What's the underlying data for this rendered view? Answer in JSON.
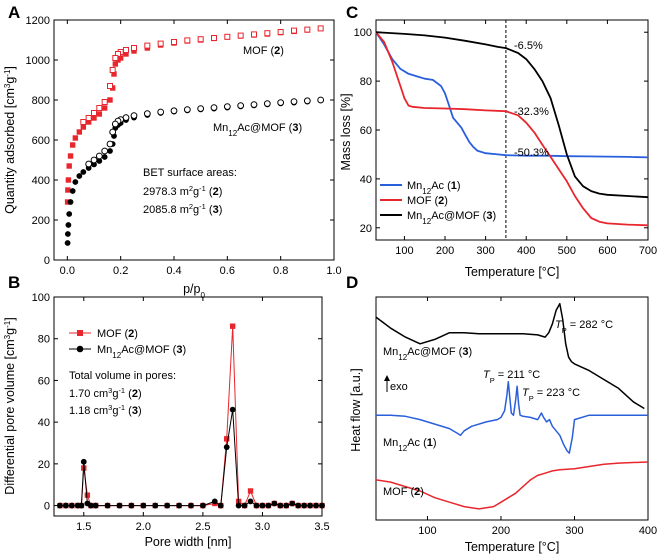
{
  "figure": {
    "panels": [
      "A",
      "B",
      "C",
      "D"
    ]
  },
  "chart_data": [
    {
      "panel": "A",
      "type": "scatter",
      "xlabel": "p/p0",
      "ylabel": "Quantity adsorbed [cm3g-1]",
      "xlim": [
        -0.05,
        1.0
      ],
      "ylim": [
        0,
        1200
      ],
      "xticks": [
        0.0,
        0.2,
        0.4,
        0.6,
        0.8,
        1.0
      ],
      "yticks": [
        0,
        200,
        400,
        600,
        800,
        1000,
        1200
      ],
      "series": [
        {
          "name": "MOF (2) adsorption",
          "color": "#e8262d",
          "marker": "filled-square",
          "x": [
            0.001,
            0.002,
            0.004,
            0.007,
            0.012,
            0.02,
            0.03,
            0.045,
            0.06,
            0.08,
            0.1,
            0.12,
            0.14,
            0.16,
            0.17,
            0.175,
            0.18,
            0.19,
            0.2,
            0.22,
            0.25,
            0.3,
            0.35,
            0.4,
            0.45,
            0.5,
            0.55,
            0.6,
            0.65,
            0.7,
            0.75,
            0.8,
            0.85,
            0.9,
            0.95
          ],
          "y": [
            290,
            350,
            400,
            470,
            520,
            575,
            610,
            640,
            665,
            690,
            710,
            730,
            760,
            800,
            860,
            930,
            980,
            1000,
            1010,
            1030,
            1045,
            1060,
            1075,
            1085,
            1095,
            1100,
            1108,
            1115,
            1120,
            1125,
            1130,
            1137,
            1143,
            1150,
            1158
          ]
        },
        {
          "name": "MOF (2) desorption",
          "color": "#e8262d",
          "marker": "open-square",
          "x": [
            0.95,
            0.9,
            0.85,
            0.8,
            0.75,
            0.7,
            0.65,
            0.6,
            0.55,
            0.5,
            0.45,
            0.4,
            0.35,
            0.3,
            0.25,
            0.22,
            0.2,
            0.19,
            0.18,
            0.17,
            0.16,
            0.14,
            0.12,
            0.1,
            0.08,
            0.06
          ],
          "y": [
            1158,
            1152,
            1147,
            1140,
            1134,
            1128,
            1122,
            1116,
            1110,
            1104,
            1098,
            1090,
            1082,
            1072,
            1060,
            1050,
            1040,
            1030,
            1010,
            950,
            870,
            790,
            760,
            735,
            710,
            690
          ]
        },
        {
          "name": "Mn12Ac@MOF (3) adsorption",
          "color": "#000000",
          "marker": "filled-circle",
          "x": [
            0.001,
            0.002,
            0.004,
            0.007,
            0.012,
            0.02,
            0.03,
            0.045,
            0.06,
            0.08,
            0.1,
            0.12,
            0.14,
            0.16,
            0.17,
            0.175,
            0.18,
            0.19,
            0.2,
            0.22,
            0.25,
            0.3,
            0.35,
            0.4,
            0.45,
            0.5,
            0.55,
            0.6,
            0.65,
            0.7,
            0.75,
            0.8,
            0.85,
            0.9,
            0.95
          ],
          "y": [
            85,
            130,
            175,
            230,
            290,
            345,
            390,
            420,
            440,
            460,
            478,
            495,
            515,
            545,
            580,
            620,
            660,
            675,
            685,
            700,
            712,
            725,
            735,
            742,
            748,
            753,
            757,
            762,
            768,
            773,
            778,
            783,
            787,
            792,
            798
          ]
        },
        {
          "name": "Mn12Ac@MOF (3) desorption",
          "color": "#000000",
          "marker": "open-circle",
          "x": [
            0.95,
            0.9,
            0.85,
            0.8,
            0.75,
            0.7,
            0.65,
            0.6,
            0.55,
            0.5,
            0.45,
            0.4,
            0.35,
            0.3,
            0.25,
            0.22,
            0.2,
            0.19,
            0.18,
            0.17,
            0.16,
            0.14,
            0.12,
            0.1,
            0.08
          ],
          "y": [
            800,
            796,
            792,
            787,
            782,
            777,
            772,
            767,
            762,
            757,
            752,
            746,
            740,
            732,
            722,
            712,
            702,
            695,
            680,
            640,
            580,
            545,
            520,
            500,
            480
          ]
        }
      ],
      "annotations": {
        "mof_label": "MOF (",
        "mof_num": "2",
        "mof_close": ")",
        "mn_label": "Mn",
        "mn_sub": "12",
        "mn_rest": "Ac@MOF (",
        "mn_num": "3",
        "mn_close": ")",
        "bet_title": "BET surface areas:",
        "bet_1_value": "2978.3 m",
        "bet_1_unit_sup": "2",
        "bet_1_unit": "g",
        "bet_1_sup": "-1",
        "bet_1_num": "2",
        "bet_2_value": "2085.8 m",
        "bet_2_unit_sup": "2",
        "bet_2_unit": "g",
        "bet_2_sup": "-1",
        "bet_2_num": "3"
      }
    },
    {
      "panel": "B",
      "type": "line",
      "xlabel": "Pore width [nm]",
      "ylabel": "Differential pore volume [cm3g-1]",
      "xlim": [
        1.25,
        3.5
      ],
      "ylim": [
        -5,
        100
      ],
      "xticks": [
        1.5,
        2.0,
        2.5,
        3.0,
        3.5
      ],
      "yticks": [
        0,
        20,
        40,
        60,
        80,
        100
      ],
      "series": [
        {
          "name": "MOF (2)",
          "color": "#e8262d",
          "marker": "filled-square",
          "x": [
            1.3,
            1.35,
            1.4,
            1.45,
            1.48,
            1.5,
            1.53,
            1.56,
            1.6,
            1.7,
            1.8,
            1.9,
            2.0,
            2.1,
            2.2,
            2.3,
            2.4,
            2.5,
            2.6,
            2.65,
            2.7,
            2.75,
            2.8,
            2.85,
            2.9,
            2.95,
            3.0,
            3.05,
            3.1,
            3.15,
            3.2,
            3.25,
            3.3,
            3.35,
            3.4,
            3.45,
            3.5
          ],
          "y": [
            0,
            0,
            0,
            0,
            0,
            18,
            5,
            0,
            0,
            0,
            0,
            0,
            0,
            0,
            0,
            0,
            0,
            0,
            1,
            0,
            32,
            86,
            2,
            0,
            7,
            0,
            0,
            0,
            1,
            0,
            0,
            1,
            0,
            0,
            0,
            0,
            0
          ]
        },
        {
          "name": "Mn12Ac@MOF (3)",
          "color": "#000000",
          "marker": "filled-circle",
          "x": [
            1.3,
            1.35,
            1.4,
            1.45,
            1.48,
            1.5,
            1.53,
            1.56,
            1.6,
            1.7,
            1.8,
            1.9,
            2.0,
            2.1,
            2.2,
            2.3,
            2.4,
            2.5,
            2.6,
            2.65,
            2.7,
            2.75,
            2.8,
            2.85,
            2.9,
            2.95,
            3.0,
            3.05,
            3.1,
            3.15,
            3.2,
            3.25,
            3.3,
            3.35,
            3.4,
            3.45,
            3.5
          ],
          "y": [
            0,
            0,
            0,
            0,
            0,
            21,
            1,
            0,
            0,
            0,
            0,
            0,
            0,
            0,
            0,
            0,
            0,
            0,
            2,
            0,
            28,
            46,
            0,
            0,
            2,
            0,
            0,
            0,
            1,
            0,
            0,
            1,
            0,
            0,
            0,
            0,
            0
          ]
        }
      ],
      "legend": {
        "mof_label": "MOF (",
        "mof_num": "2",
        "mof_close": ")",
        "mn_label": "Mn",
        "mn_sub": "12",
        "mn_rest": "Ac@MOF (",
        "mn_num": "3",
        "mn_close": ")"
      },
      "annotations": {
        "total_title": "Total volume in pores:",
        "v1_value": "1.70 cm",
        "v1_sup": "3",
        "v1_g": "g",
        "v1_gsup": "-1",
        "v1_num": "2",
        "v2_value": "1.18 cm",
        "v2_sup": "3",
        "v2_g": "g",
        "v2_gsup": "-1",
        "v2_num": "3"
      }
    },
    {
      "panel": "C",
      "type": "line",
      "xlabel": "Temperature [°C]",
      "ylabel": "Mass loss [%]",
      "xlim": [
        30,
        700
      ],
      "ylim": [
        15,
        105
      ],
      "xticks": [
        100,
        200,
        300,
        400,
        500,
        600,
        700
      ],
      "yticks": [
        20,
        40,
        60,
        80,
        100
      ],
      "vline_x": 350,
      "series": [
        {
          "name": "Mn12Ac (1)",
          "color": "#2a5fdc",
          "x": [
            30,
            50,
            70,
            90,
            110,
            130,
            150,
            170,
            190,
            200,
            210,
            220,
            230,
            240,
            250,
            260,
            270,
            280,
            300,
            330,
            350,
            400,
            450,
            500,
            550,
            600,
            650,
            700
          ],
          "y": [
            100,
            95,
            89,
            85,
            83,
            82,
            81,
            80.5,
            78,
            75,
            70,
            65,
            63,
            61,
            58,
            55,
            53,
            51.5,
            50.5,
            50,
            49.7,
            49.5,
            49.5,
            49.3,
            49.2,
            49.1,
            49,
            48.8
          ]
        },
        {
          "name": "MOF (2)",
          "color": "#e8262d",
          "x": [
            30,
            50,
            70,
            90,
            100,
            110,
            120,
            150,
            200,
            250,
            300,
            350,
            380,
            400,
            420,
            440,
            460,
            480,
            500,
            520,
            540,
            560,
            580,
            600,
            650,
            700
          ],
          "y": [
            100,
            96,
            88,
            78,
            73,
            70,
            69.5,
            69,
            68.8,
            68.5,
            68,
            67.7,
            66,
            63,
            59,
            54,
            49,
            44,
            39,
            33,
            28,
            24,
            22.5,
            21.8,
            21.3,
            21
          ]
        },
        {
          "name": "Mn12Ac@MOF (3)",
          "color": "#000000",
          "x": [
            30,
            100,
            150,
            200,
            250,
            300,
            330,
            350,
            380,
            400,
            420,
            440,
            460,
            480,
            500,
            520,
            540,
            560,
            580,
            600,
            650,
            700
          ],
          "y": [
            100,
            99.3,
            98.7,
            97.8,
            96.5,
            95,
            94,
            93.5,
            91.5,
            89,
            85,
            80,
            73,
            62,
            50,
            41,
            37,
            35,
            34,
            33.5,
            33,
            32.5
          ]
        }
      ],
      "annotations": {
        "pct_black": "-6.5%",
        "pct_red": "-32.3%",
        "pct_blue": "-50.3%"
      },
      "legend": {
        "l1_label": "Mn",
        "l1_sub": "12",
        "l1_rest": "Ac (",
        "l1_num": "1",
        "l1_close": ")",
        "l2_label": "MOF (",
        "l2_num": "2",
        "l2_close": ")",
        "l3_label": "Mn",
        "l3_sub": "12",
        "l3_rest": "Ac@MOF (",
        "l3_num": "3",
        "l3_close": ")"
      }
    },
    {
      "panel": "D",
      "type": "line",
      "xlabel": "Temperature [°C]",
      "ylabel": "Heat flow [a.u.]",
      "xlim": [
        30,
        400
      ],
      "xticks": [
        100,
        200,
        300,
        400
      ],
      "ylim": [
        0,
        100
      ],
      "series": [
        {
          "name": "Mn12Ac@MOF (3)",
          "color": "#000000",
          "x": [
            30,
            50,
            70,
            90,
            110,
            130,
            150,
            170,
            190,
            210,
            230,
            250,
            260,
            265,
            270,
            275,
            280,
            284,
            288,
            292,
            296,
            300,
            320,
            340,
            360,
            380,
            395
          ],
          "y": [
            91,
            86,
            82,
            79,
            81,
            84,
            84,
            83.5,
            83.5,
            83.5,
            83.5,
            83,
            82,
            84,
            88,
            94,
            97,
            90,
            79,
            73,
            71,
            70,
            67,
            63,
            59,
            53,
            50
          ]
        },
        {
          "name": "Mn12Ac (1)",
          "color": "#2a5fdc",
          "x": [
            30,
            50,
            70,
            90,
            110,
            130,
            140,
            145,
            150,
            160,
            180,
            195,
            200,
            205,
            208,
            210,
            212,
            214,
            217,
            220,
            222,
            224,
            226,
            230,
            240,
            250,
            255,
            258,
            262,
            266,
            270,
            275,
            280,
            285,
            290,
            293,
            297,
            300,
            320,
            350,
            380,
            400
          ],
          "y": [
            47,
            47,
            46.5,
            45,
            43,
            41,
            39,
            38,
            40,
            42,
            44,
            45,
            46,
            49,
            56,
            62,
            55,
            48,
            47,
            54,
            60,
            52,
            47,
            46.5,
            46,
            45,
            48,
            46,
            44,
            45,
            42,
            40,
            38,
            34,
            31,
            30,
            37,
            45,
            47,
            47,
            47,
            47
          ]
        },
        {
          "name": "MOF (2)",
          "color": "#e8262d",
          "x": [
            30,
            50,
            70,
            90,
            110,
            130,
            150,
            170,
            190,
            200,
            210,
            220,
            230,
            240,
            250,
            260,
            270,
            280,
            300,
            320,
            340,
            360,
            380,
            400
          ],
          "y": [
            18,
            17,
            15,
            13,
            10,
            8,
            6,
            5,
            6,
            8,
            10,
            12,
            15,
            18,
            20,
            21,
            22,
            22.5,
            23,
            24,
            25,
            25.5,
            25.8,
            26
          ]
        }
      ],
      "annotations": {
        "tp_black_T": "T",
        "tp_black_sub": "P",
        "tp_black_val": " = 282 °C",
        "tp_blue1_T": "T",
        "tp_blue1_sub": "P",
        "tp_blue1_val": " = 211 °C",
        "tp_blue2_T": "T",
        "tp_blue2_sub": "P",
        "tp_blue2_val": " = 223 °C",
        "exo": "exo",
        "lbl3_a": "Mn",
        "lbl3_sub": "12",
        "lbl3_b": "Ac@MOF (",
        "lbl3_num": "3",
        "lbl3_c": ")",
        "lbl1_a": "Mn",
        "lbl1_sub": "12",
        "lbl1_b": "Ac (",
        "lbl1_num": "1",
        "lbl1_c": ")",
        "lbl2_a": "MOF (",
        "lbl2_num": "2",
        "lbl2_c": ")"
      }
    }
  ]
}
